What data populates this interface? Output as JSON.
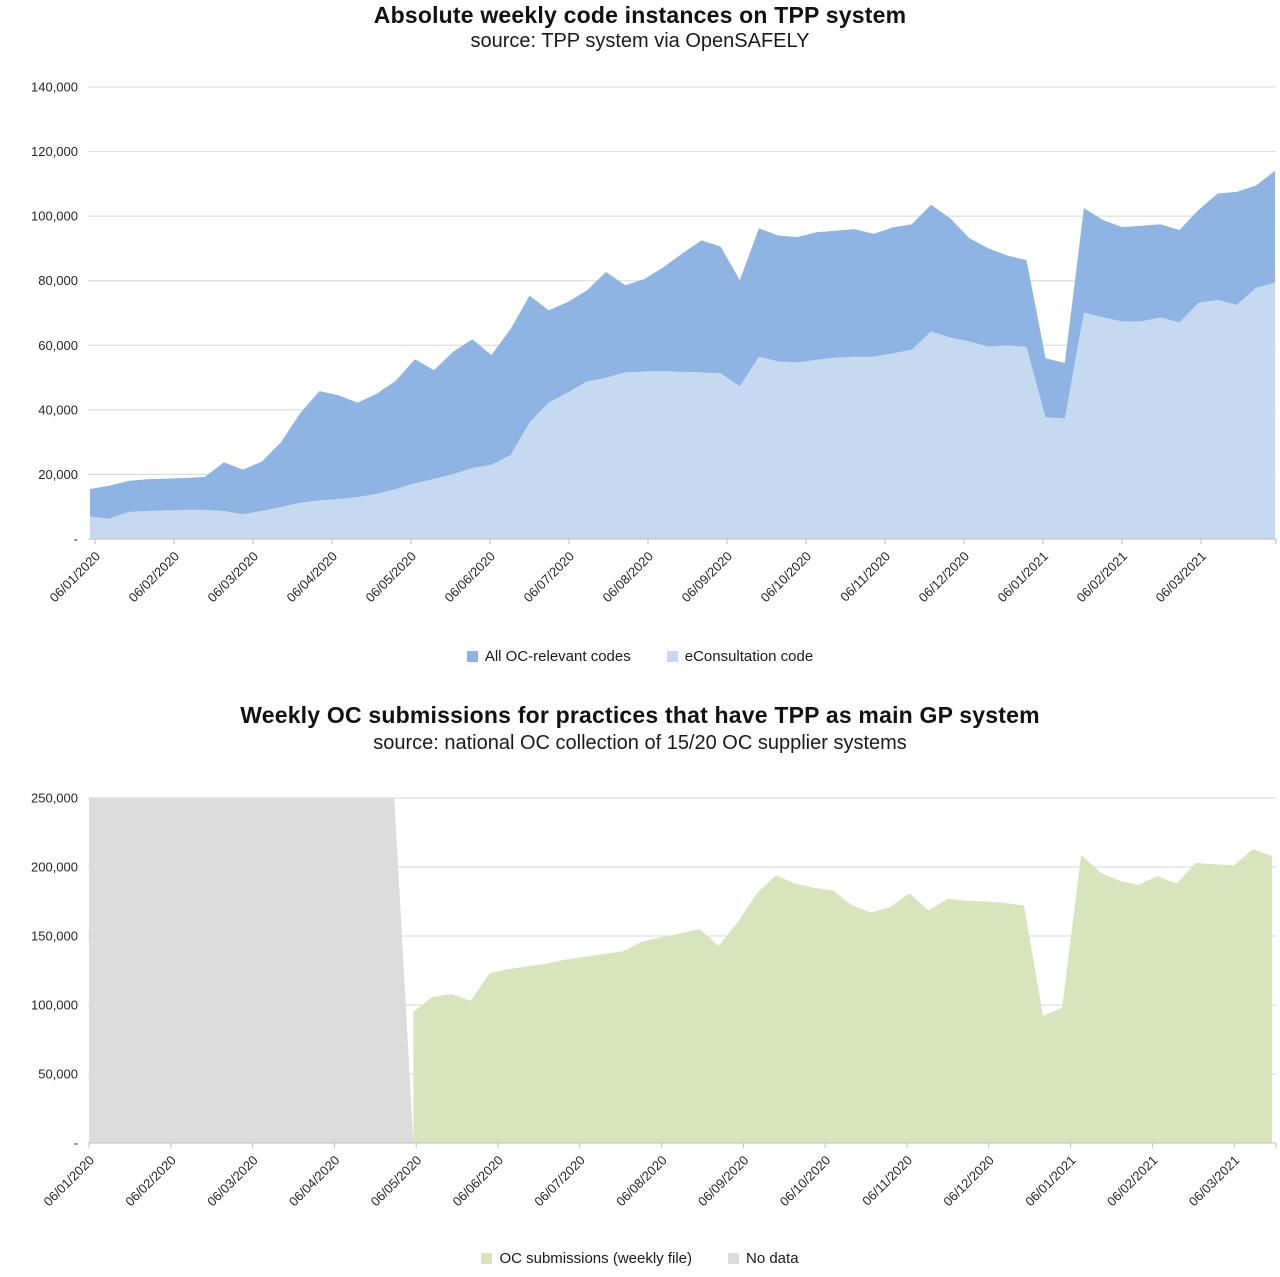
{
  "page": {
    "background": "#ffffff"
  },
  "chart_data": [
    {
      "type": "area",
      "title": "Absolute weekly code instances on TPP system",
      "subtitle": "source: TPP system via OpenSAFELY",
      "legend_position": "bottom",
      "grid": true,
      "ylim": [
        0,
        140000
      ],
      "y_tick_values": [
        140000,
        120000,
        100000,
        80000,
        60000,
        40000,
        20000,
        0
      ],
      "y_tick_labels": [
        "140,000",
        "120,000",
        "100,000",
        "80,000",
        "60,000",
        "40,000",
        "20,000",
        "-"
      ],
      "x_tick_labels": [
        "06/01/2020",
        "06/02/2020",
        "06/03/2020",
        "06/04/2020",
        "06/05/2020",
        "06/06/2020",
        "06/07/2020",
        "06/08/2020",
        "06/09/2020",
        "06/10/2020",
        "06/11/2020",
        "06/12/2020",
        "06/01/2021",
        "06/02/2021",
        "06/03/2021"
      ],
      "categories": [
        "06/01/2020",
        "13/01/2020",
        "20/01/2020",
        "27/01/2020",
        "03/02/2020",
        "10/02/2020",
        "17/02/2020",
        "24/02/2020",
        "02/03/2020",
        "09/03/2020",
        "16/03/2020",
        "23/03/2020",
        "30/03/2020",
        "06/04/2020",
        "13/04/2020",
        "20/04/2020",
        "27/04/2020",
        "04/05/2020",
        "11/05/2020",
        "18/05/2020",
        "25/05/2020",
        "01/06/2020",
        "08/06/2020",
        "15/06/2020",
        "22/06/2020",
        "29/06/2020",
        "06/07/2020",
        "13/07/2020",
        "20/07/2020",
        "27/07/2020",
        "03/08/2020",
        "10/08/2020",
        "17/08/2020",
        "24/08/2020",
        "31/08/2020",
        "07/09/2020",
        "14/09/2020",
        "21/09/2020",
        "28/09/2020",
        "05/10/2020",
        "12/10/2020",
        "19/10/2020",
        "26/10/2020",
        "02/11/2020",
        "09/11/2020",
        "16/11/2020",
        "23/11/2020",
        "30/11/2020",
        "07/12/2020",
        "14/12/2020",
        "21/12/2020",
        "28/12/2020",
        "04/01/2021",
        "11/01/2021",
        "18/01/2021",
        "25/01/2021",
        "01/02/2021",
        "08/02/2021",
        "15/02/2021",
        "22/02/2021",
        "01/03/2021",
        "08/03/2021",
        "15/03/2021"
      ],
      "series": [
        {
          "name": "All OC-relevant codes",
          "color": "#8eb4e3",
          "values": [
            15500,
            16500,
            18000,
            18500,
            18700,
            18900,
            19200,
            23800,
            21500,
            24000,
            30000,
            39000,
            45800,
            44500,
            42200,
            45000,
            49000,
            55700,
            52300,
            58000,
            61900,
            57000,
            65000,
            75400,
            70800,
            73400,
            77000,
            82700,
            78600,
            80500,
            84200,
            88500,
            92500,
            90500,
            80200,
            96200,
            94000,
            93500,
            95000,
            95500,
            96000,
            94500,
            96500,
            97500,
            103500,
            99400,
            93200,
            90000,
            87800,
            86400,
            56000,
            54500,
            102500,
            98800,
            96600,
            97000,
            97500,
            95700,
            101900,
            107000,
            107500,
            109500,
            114000
          ]
        },
        {
          "name": "eConsultation code",
          "color": "#c5d9f1",
          "values": [
            7000,
            6300,
            8400,
            8700,
            8900,
            9000,
            9000,
            8700,
            7700,
            8700,
            9900,
            11200,
            12000,
            12400,
            13000,
            14000,
            15500,
            17300,
            18600,
            20100,
            22000,
            23000,
            26000,
            36200,
            42300,
            45400,
            48800,
            50000,
            51600,
            51900,
            52000,
            51800,
            51600,
            51400,
            47300,
            56500,
            55000,
            54700,
            55500,
            56200,
            56500,
            56500,
            57500,
            58700,
            64300,
            62400,
            61200,
            59600,
            60000,
            59500,
            37700,
            37400,
            70200,
            68700,
            67400,
            67400,
            68700,
            67100,
            73200,
            74100,
            72500,
            77800,
            79400
          ]
        }
      ]
    },
    {
      "type": "area",
      "title": "Weekly OC submissions for practices that have TPP as main GP system",
      "subtitle": "source: national OC collection of 15/20 OC supplier systems",
      "legend_position": "bottom",
      "grid": true,
      "ylim": [
        0,
        250000
      ],
      "y_tick_values": [
        250000,
        200000,
        150000,
        100000,
        50000,
        0
      ],
      "y_tick_labels": [
        "250,000",
        "200,000",
        "150,000",
        "100,000",
        "50,000",
        "-"
      ],
      "x_tick_labels": [
        "06/01/2020",
        "06/02/2020",
        "06/03/2020",
        "06/04/2020",
        "06/05/2020",
        "06/06/2020",
        "06/07/2020",
        "06/08/2020",
        "06/09/2020",
        "06/10/2020",
        "06/11/2020",
        "06/12/2020",
        "06/01/2021",
        "06/02/2021",
        "06/03/2021"
      ],
      "categories": [
        "06/01/2020",
        "13/01/2020",
        "20/01/2020",
        "27/01/2020",
        "03/02/2020",
        "10/02/2020",
        "17/02/2020",
        "24/02/2020",
        "02/03/2020",
        "09/03/2020",
        "16/03/2020",
        "23/03/2020",
        "30/03/2020",
        "06/04/2020",
        "13/04/2020",
        "20/04/2020",
        "27/04/2020",
        "04/05/2020",
        "11/05/2020",
        "18/05/2020",
        "25/05/2020",
        "01/06/2020",
        "08/06/2020",
        "15/06/2020",
        "22/06/2020",
        "29/06/2020",
        "06/07/2020",
        "13/07/2020",
        "20/07/2020",
        "27/07/2020",
        "03/08/2020",
        "10/08/2020",
        "17/08/2020",
        "24/08/2020",
        "31/08/2020",
        "07/09/2020",
        "14/09/2020",
        "21/09/2020",
        "28/09/2020",
        "05/10/2020",
        "12/10/2020",
        "19/10/2020",
        "26/10/2020",
        "02/11/2020",
        "09/11/2020",
        "16/11/2020",
        "23/11/2020",
        "30/11/2020",
        "07/12/2020",
        "14/12/2020",
        "21/12/2020",
        "28/12/2020",
        "04/01/2021",
        "11/01/2021",
        "18/01/2021",
        "25/01/2021",
        "01/02/2021",
        "08/02/2021",
        "15/02/2021",
        "22/02/2021",
        "01/03/2021",
        "08/03/2021",
        "15/03/2021"
      ],
      "series": [
        {
          "name": "No data",
          "color": "#dcdcdc",
          "values": [
            250000,
            250000,
            250000,
            250000,
            250000,
            250000,
            250000,
            250000,
            250000,
            250000,
            250000,
            250000,
            250000,
            250000,
            250000,
            250000,
            250000,
            0,
            0,
            0,
            0,
            0,
            0,
            0,
            0,
            0,
            0,
            0,
            0,
            0,
            0,
            0,
            0,
            0,
            0,
            0,
            0,
            0,
            0,
            0,
            0,
            0,
            0,
            0,
            0,
            0,
            0,
            0,
            0,
            0,
            0,
            0,
            0,
            0,
            0,
            0,
            0,
            0,
            0,
            0,
            0,
            0,
            0
          ]
        },
        {
          "name": "OC submissions (weekly file)",
          "color": "#d7e4bc",
          "values": [
            null,
            null,
            null,
            null,
            null,
            null,
            null,
            null,
            null,
            null,
            null,
            null,
            null,
            null,
            null,
            null,
            null,
            95000,
            106000,
            108000,
            103000,
            123000,
            126000,
            128000,
            130000,
            133000,
            135000,
            137000,
            139000,
            146000,
            149000,
            152000,
            155000,
            143000,
            160000,
            181000,
            194000,
            188000,
            185000,
            183000,
            172000,
            167000,
            171000,
            181000,
            168500,
            177000,
            175500,
            175000,
            174000,
            172000,
            92000,
            98000,
            209000,
            196000,
            190000,
            187000,
            193500,
            188000,
            203000,
            202000,
            201000,
            213000,
            208000
          ]
        }
      ]
    }
  ],
  "legend_order_note": {
    "chart1": [
      "All OC-relevant codes",
      "eConsultation code"
    ],
    "chart2": [
      "OC submissions (weekly file)",
      "No data"
    ]
  }
}
